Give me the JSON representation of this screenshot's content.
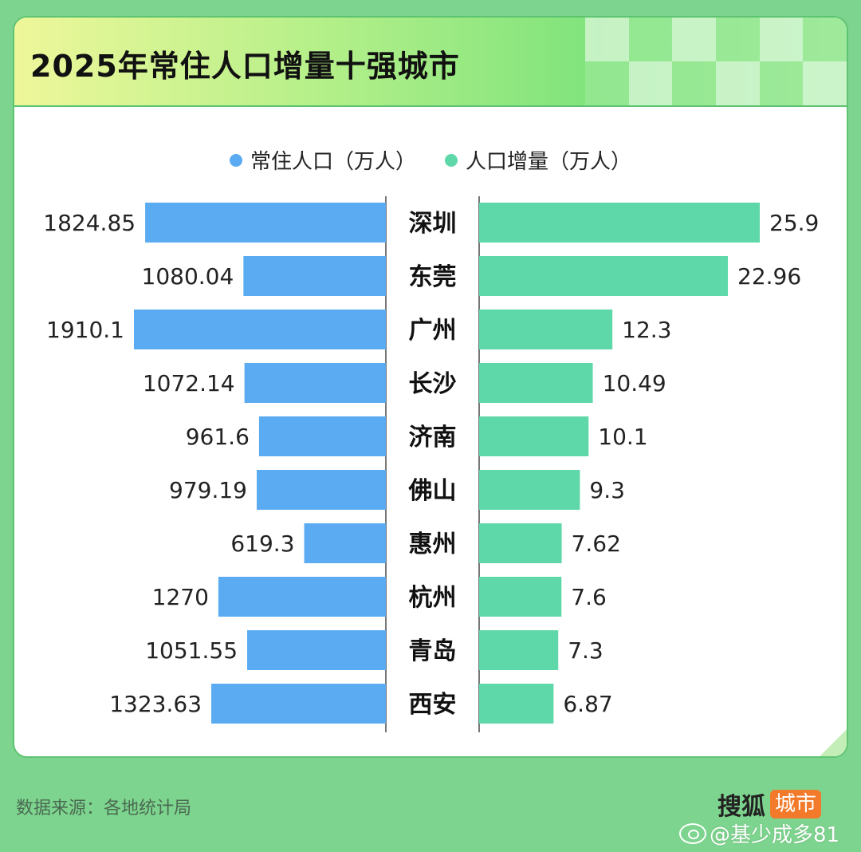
{
  "chart_data": {
    "type": "bar",
    "title": "2025年常住人口增量十强城市",
    "categories": [
      "深圳",
      "东莞",
      "广州",
      "长沙",
      "济南",
      "佛山",
      "惠州",
      "杭州",
      "青岛",
      "西安"
    ],
    "series": [
      {
        "name": "常住人口（万人）",
        "values": [
          1824.85,
          1080.04,
          1910.1,
          1072.14,
          961.6,
          979.19,
          619.3,
          1270,
          1051.55,
          1323.63
        ],
        "labels": [
          "1824.85",
          "1080.04",
          "1910.1",
          "1072.14",
          "961.6",
          "979.19",
          "619.3",
          "1270",
          "1051.55",
          "1323.63"
        ],
        "color": "#5aabf2",
        "side": "left"
      },
      {
        "name": "人口增量（万人）",
        "values": [
          25.9,
          22.96,
          12.3,
          10.49,
          10.1,
          9.3,
          7.62,
          7.6,
          7.3,
          6.87
        ],
        "labels": [
          "25.9",
          "22.96",
          "12.3",
          "10.49",
          "10.1",
          "9.3",
          "7.62",
          "7.6",
          "7.3",
          "6.87"
        ],
        "color": "#5ed8a8",
        "side": "right"
      }
    ],
    "legend": "top-center",
    "grid": false
  },
  "footer": {
    "source": "数据来源：各地统计局",
    "brand": "搜狐",
    "brand_tag": "城市",
    "watermark": "@基少成多81"
  },
  "icons": {
    "watermark_icon": "weibo-icon"
  }
}
